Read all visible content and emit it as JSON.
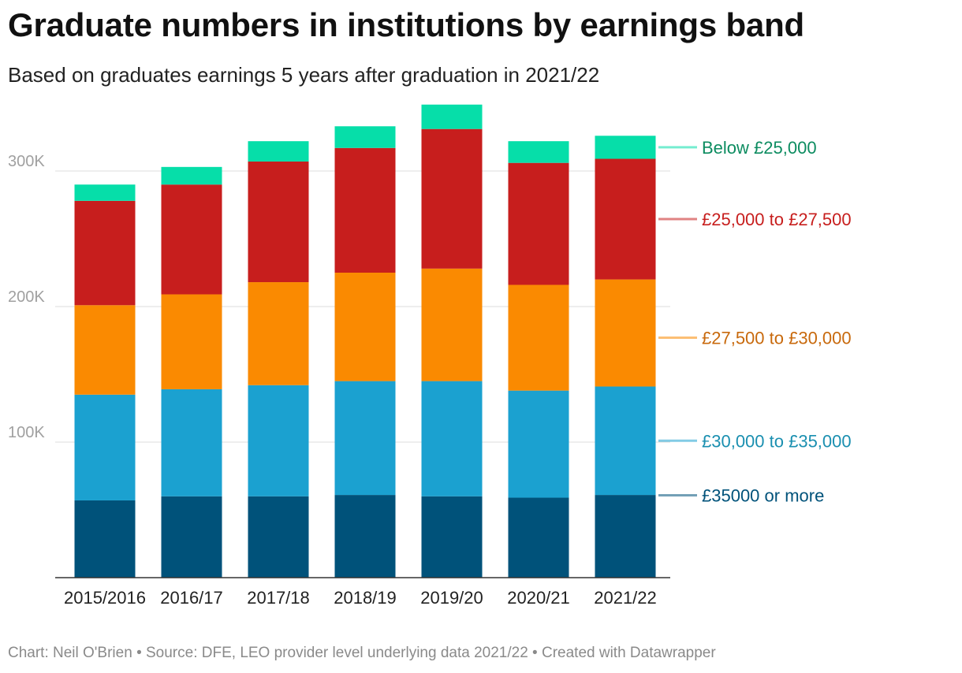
{
  "header": {
    "title": "Graduate numbers in institutions by earnings band",
    "subtitle": "Based on graduates earnings 5 years after graduation in 2021/22"
  },
  "footer": {
    "credit": "Chart: Neil O'Brien • Source: DFE, LEO provider level underlying data 2021/22 • Created with Datawrapper"
  },
  "chart_data": {
    "type": "bar",
    "stacked": true,
    "title": "Graduate numbers in institutions by earnings band",
    "subtitle": "Based on graduates earnings 5 years after graduation in 2021/22",
    "xlabel": "",
    "ylabel": "",
    "ylim": [
      0,
      340000
    ],
    "yticks": [
      {
        "value": 100000,
        "label": "100K"
      },
      {
        "value": 200000,
        "label": "200K"
      },
      {
        "value": 300000,
        "label": "300K"
      }
    ],
    "grid": true,
    "legend_placement": "right, labels beside bars",
    "categories": [
      "2015/2016",
      "2016/17",
      "2017/18",
      "2018/19",
      "2019/20",
      "2020/21",
      "2021/22"
    ],
    "series": [
      {
        "name": "£35000 or more",
        "color": "#00527a",
        "values": [
          57000,
          60000,
          60000,
          61000,
          60000,
          59000,
          61000
        ]
      },
      {
        "name": "£30,000 to £35,000",
        "color": "#1ba1d0",
        "values": [
          78000,
          79000,
          82000,
          84000,
          85000,
          79000,
          80000
        ]
      },
      {
        "name": "£27,500 to £30,000",
        "color": "#fa8a01",
        "values": [
          66000,
          70000,
          76000,
          80000,
          83000,
          78000,
          79000
        ]
      },
      {
        "name": "£25,000 to £27,500",
        "color": "#c71e1d",
        "values": [
          77000,
          81000,
          89000,
          92000,
          103000,
          90000,
          89000
        ]
      },
      {
        "name": "Below £25,000",
        "color": "#06dea9",
        "values": [
          12000,
          13000,
          15000,
          16000,
          18000,
          16000,
          17000
        ]
      }
    ],
    "legend_colors": {
      "£35000 or more": "#00527a",
      "£30,000 to £35,000": "#1a8fb0",
      "£27,500 to £30,000": "#c8690c",
      "£25,000 to £27,500": "#c71e1d",
      "Below £25,000": "#0c8c60"
    }
  }
}
